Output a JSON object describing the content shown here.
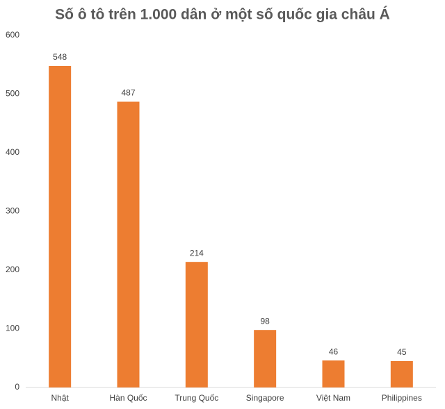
{
  "chart_data": {
    "type": "bar",
    "title": "Số ô tô trên 1.000 dân ở một số quốc gia châu Á",
    "categories": [
      "Nhật",
      "Hàn Quốc",
      "Trung Quốc",
      "Singapore",
      "Việt Nam",
      "Philippines"
    ],
    "values": [
      548,
      487,
      214,
      98,
      46,
      45
    ],
    "color": "#ed7d31",
    "ylim": [
      0,
      600
    ],
    "yticks": [
      0,
      100,
      200,
      300,
      400,
      500,
      600
    ],
    "grid": false
  }
}
